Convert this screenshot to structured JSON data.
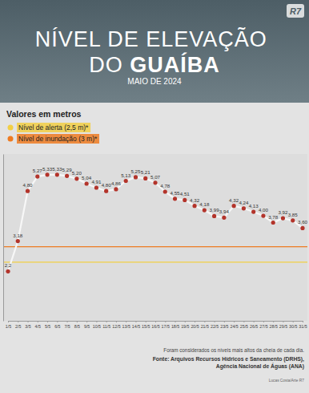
{
  "chart_data": {
    "type": "line",
    "title": "NÍVEL DE ELEVAÇÃO DO GUAÍBA",
    "subtitle": "MAIO DE 2024",
    "logo": "R7",
    "units_label": "Valores em metros",
    "categories": [
      "1/5",
      "2/5",
      "3/5",
      "4/5",
      "5/5",
      "6/5",
      "7/5",
      "8/5",
      "9/5",
      "10/5",
      "11/5",
      "12/5",
      "13/5",
      "14/5",
      "15/5",
      "16/5",
      "17/5",
      "18/5",
      "19/5",
      "20/5",
      "21/5",
      "22/5",
      "23/5",
      "24/5",
      "25/5",
      "26/5",
      "27/5",
      "28/5",
      "29/5",
      "30/5",
      "31/5"
    ],
    "values": [
      2.2,
      3.18,
      4.8,
      5.27,
      5.33,
      5.33,
      5.29,
      5.2,
      5.04,
      4.91,
      4.8,
      4.86,
      5.13,
      5.25,
      5.21,
      5.07,
      4.78,
      4.55,
      4.51,
      4.32,
      4.18,
      3.99,
      3.94,
      4.32,
      4.24,
      4.13,
      4.0,
      3.78,
      3.92,
      3.85,
      3.6
    ],
    "value_labels": [
      "2,2",
      "3,18",
      "4,80",
      "5,27",
      "5,33",
      "5,33",
      "5,29",
      "5,20",
      "5,04",
      "4,91",
      "4,80",
      "4,86",
      "5,13",
      "5,25",
      "5,21",
      "5,07",
      "4,78",
      "4,55",
      "4,51",
      "4,32",
      "4,18",
      "3,99",
      "3,94",
      "4,32",
      "4,24",
      "4,13",
      "4,00",
      "3,78",
      "3,92",
      "3,85",
      "3,60"
    ],
    "data_labels": true,
    "color": "#b3342b",
    "marker": "circle",
    "ylim": [
      0.6,
      6.0
    ],
    "yticks": [],
    "tick_labels": "x",
    "grid": false,
    "reference_lines": [
      {
        "value": 2.5,
        "label": "Nível de alerta (2,5 m)*",
        "color": "#f2cf45"
      },
      {
        "value": 3.0,
        "label": "Nível de inundação (3 m)*",
        "color": "#ee7b22"
      }
    ],
    "note": "Foram considerados os níveis mais altos da cheia de cada dia.",
    "source": [
      "Fonte: Arquivos Recursos Hídricos e Saneamento (DRHS),",
      "Agência Nacional de Águas (ANA)"
    ],
    "credit": "Lucas Costa/Arte R7"
  }
}
